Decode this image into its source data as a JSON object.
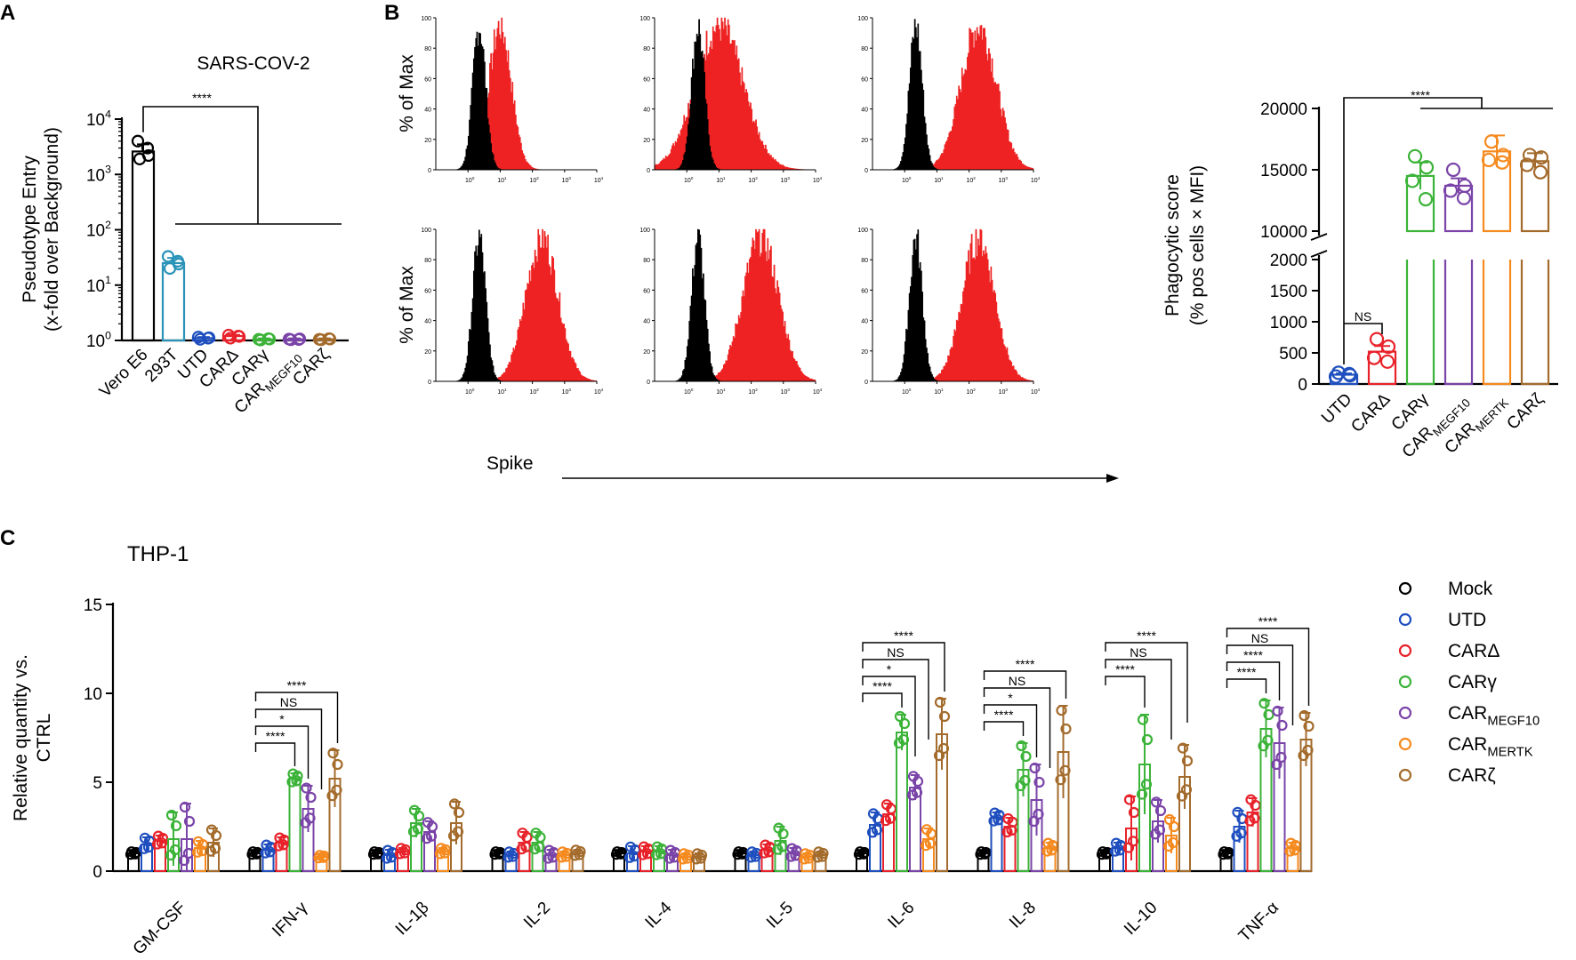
{
  "colors": {
    "black": "#000000",
    "Mock": "#000000",
    "UTD": "#1f4fbf",
    "CARΔ": "#e8222a",
    "CARγ": "#3cb339",
    "CARMEGF10": "#7a44a8",
    "CARMERTK": "#f58a1f",
    "CARζ": "#a36b2c",
    "VeroE6": "#000000",
    "293T": "#2a93b8",
    "histRed": "#ee2222"
  },
  "chart_data": [
    {
      "id": "A",
      "panel_label": "A",
      "type": "bar",
      "title": "SARS-COV-2",
      "ylabel_lines": [
        "Pseudotype Entry",
        "(x-fold over Background)"
      ],
      "yscale": "log",
      "ylim": [
        1,
        10000
      ],
      "ytick_labels": [
        {
          "base": "10",
          "exp": "0"
        },
        {
          "base": "10",
          "exp": "1"
        },
        {
          "base": "10",
          "exp": "2"
        },
        {
          "base": "10",
          "exp": "3"
        },
        {
          "base": "10",
          "exp": "4"
        }
      ],
      "categories": [
        {
          "main": "Vero E6",
          "sub": "",
          "color_key": "VeroE6"
        },
        {
          "main": "293T",
          "sub": "",
          "color_key": "293T"
        },
        {
          "main": "UTD",
          "sub": "",
          "color_key": "UTD"
        },
        {
          "main": "CARΔ",
          "sub": "",
          "color_key": "CARΔ"
        },
        {
          "main": "CARγ",
          "sub": "",
          "color_key": "CARγ"
        },
        {
          "main": "CAR",
          "sub": "MEGF10",
          "color_key": "CARMEGF10"
        },
        {
          "main": "CARζ",
          "sub": "",
          "color_key": "CARζ"
        }
      ],
      "values": [
        2600,
        25,
        1.1,
        1.2,
        1.05,
        1.05,
        1.05
      ],
      "errors": [
        900,
        6,
        0.05,
        0.06,
        0.04,
        0.04,
        0.04
      ],
      "points": [
        [
          4000,
          3000,
          1900,
          2200
        ],
        [
          33,
          27,
          20,
          24
        ],
        [
          1.15,
          1.1,
          1.05,
          1.12
        ],
        [
          1.25,
          1.2,
          1.1,
          1.18
        ],
        [
          1.05,
          1.08,
          1.02,
          1.06
        ],
        [
          1.06,
          1.04,
          1.03,
          1.07
        ],
        [
          1.05,
          1.08,
          1.03,
          1.06
        ]
      ],
      "significance": [
        {
          "label": "****",
          "from": "Vero E6",
          "to": "UTD..CARζ"
        }
      ]
    },
    {
      "id": "B_hist",
      "panel_label": "B",
      "type": "histogram",
      "ylabel": "% of Max",
      "xlabel": "Spike",
      "xscale": "log",
      "xlim": [
        0.1,
        10000
      ],
      "ylim": [
        0,
        100
      ],
      "ytick_labels": [
        "0",
        "20",
        "40",
        "60",
        "80",
        "100"
      ],
      "xtick_labels": [
        {
          "base": "10",
          "exp": "0"
        },
        {
          "base": "10",
          "exp": "1"
        },
        {
          "base": "10",
          "exp": "2"
        },
        {
          "base": "10",
          "exp": "3"
        },
        {
          "base": "10",
          "exp": "4"
        }
      ],
      "series_names": [
        "control",
        "stained"
      ],
      "control_peak_log10": 0.35,
      "stained_peak_log10": [
        1.0,
        1.0,
        2.3,
        2.3,
        2.3,
        2.3
      ],
      "stained_spread": [
        0.35,
        0.75,
        0.55,
        0.5,
        0.55,
        0.5
      ]
    },
    {
      "id": "B_bar",
      "type": "bar",
      "ylabel_lines": [
        "Phagocytic score",
        "(% pos cells × MFI)"
      ],
      "yaxis_break": true,
      "ylim_lower": [
        0,
        2000
      ],
      "ylim_upper": [
        10000,
        20000
      ],
      "ytick_labels_upper": [
        "10000",
        "15000",
        "20000"
      ],
      "ytick_labels_lower": [
        "0",
        "500",
        "1000",
        "1500",
        "2000"
      ],
      "categories": [
        {
          "main": "UTD",
          "sub": "",
          "color_key": "UTD"
        },
        {
          "main": "CARΔ",
          "sub": "",
          "color_key": "CARΔ"
        },
        {
          "main": "CARγ",
          "sub": "",
          "color_key": "CARγ"
        },
        {
          "main": "CAR",
          "sub": "MEGF10",
          "color_key": "CARMEGF10"
        },
        {
          "main": "CAR",
          "sub": "MERTK",
          "color_key": "CARMERTK"
        },
        {
          "main": "CARζ",
          "sub": "",
          "color_key": "CARζ"
        }
      ],
      "values": [
        150,
        520,
        14500,
        13700,
        16500,
        15700
      ],
      "errors": [
        20,
        90,
        1100,
        600,
        1300,
        650
      ],
      "points": [
        [
          180,
          140,
          120,
          160
        ],
        [
          720,
          600,
          420,
          360
        ],
        [
          16100,
          15200,
          14100,
          12600
        ],
        [
          15000,
          13700,
          13300,
          12700
        ],
        [
          17300,
          16200,
          15800,
          15600
        ],
        [
          16200,
          16000,
          15400,
          14800
        ]
      ],
      "significance": [
        {
          "label": "****",
          "from": "UTD",
          "to": "CARγ..CARζ"
        },
        {
          "label": "NS",
          "from": "UTD",
          "to": "CARΔ"
        }
      ]
    },
    {
      "id": "C",
      "panel_label": "C",
      "type": "bar",
      "title": "THP-1",
      "ylabel_lines": [
        "Relative quantity vs.",
        "CTRL"
      ],
      "ylim": [
        0,
        15
      ],
      "ytick_labels": [
        "0",
        "5",
        "10",
        "15"
      ],
      "categories": [
        "GM-CSF",
        "IFN-γ",
        "IL-1β",
        "IL-2",
        "IL-4",
        "IL-5",
        "IL-6",
        "IL-8",
        "IL-10",
        "TNF-α"
      ],
      "legend": [
        {
          "main": "Mock",
          "sub": "",
          "color_key": "Mock"
        },
        {
          "main": "UTD",
          "sub": "",
          "color_key": "UTD"
        },
        {
          "main": "CARΔ",
          "sub": "",
          "color_key": "CARΔ"
        },
        {
          "main": "CARγ",
          "sub": "",
          "color_key": "CARγ"
        },
        {
          "main": "CAR",
          "sub": "MEGF10",
          "color_key": "CARMEGF10"
        },
        {
          "main": "CAR",
          "sub": "MERTK",
          "color_key": "CARMERTK"
        },
        {
          "main": "CARζ",
          "sub": "",
          "color_key": "CARζ"
        }
      ],
      "series": [
        {
          "name": "Mock",
          "values": [
            1.0,
            1.0,
            1.0,
            1.0,
            1.0,
            1.0,
            1.0,
            1.0,
            1.0,
            1.0
          ],
          "errors": [
            0.1,
            0.1,
            0.1,
            0.1,
            0.1,
            0.1,
            0.1,
            0.1,
            0.1,
            0.1
          ]
        },
        {
          "name": "UTD",
          "values": [
            1.5,
            1.2,
            0.9,
            0.9,
            1.0,
            0.9,
            2.6,
            3.0,
            1.3,
            2.5
          ],
          "errors": [
            0.4,
            0.3,
            0.3,
            0.2,
            0.4,
            0.2,
            0.7,
            0.3,
            0.3,
            0.9
          ]
        },
        {
          "name": "CARΔ",
          "values": [
            1.7,
            1.6,
            1.1,
            1.6,
            1.1,
            1.2,
            3.2,
            2.5,
            2.4,
            3.3
          ],
          "errors": [
            0.3,
            0.3,
            0.2,
            0.6,
            0.3,
            0.3,
            0.6,
            0.5,
            1.8,
            0.8
          ]
        },
        {
          "name": "CARγ",
          "values": [
            1.8,
            5.2,
            2.7,
            1.6,
            1.1,
            1.7,
            7.8,
            5.7,
            6.0,
            8.0
          ],
          "errors": [
            1.5,
            0.3,
            0.8,
            0.6,
            0.3,
            0.8,
            1.0,
            1.5,
            2.8,
            1.6
          ]
        },
        {
          "name": "CARMEGF10",
          "values": [
            1.8,
            3.5,
            2.2,
            0.9,
            0.9,
            1.0,
            4.7,
            4.0,
            2.8,
            7.2
          ],
          "errors": [
            2.0,
            1.3,
            0.6,
            0.3,
            0.3,
            0.3,
            0.7,
            2.0,
            1.2,
            2.0
          ]
        },
        {
          "name": "CARMERTK",
          "values": [
            1.3,
            0.8,
            1.1,
            0.9,
            0.8,
            0.8,
            1.8,
            1.3,
            2.0,
            1.3
          ],
          "errors": [
            0.4,
            0.1,
            0.2,
            0.2,
            0.2,
            0.2,
            0.6,
            0.3,
            1.0,
            0.3
          ]
        },
        {
          "name": "CARζ",
          "values": [
            1.6,
            5.2,
            2.7,
            1.0,
            0.8,
            0.9,
            7.7,
            6.7,
            5.3,
            7.4
          ],
          "errors": [
            0.8,
            1.6,
            1.2,
            0.2,
            0.2,
            0.2,
            2.0,
            2.6,
            1.8,
            1.5
          ]
        }
      ],
      "significance": [
        {
          "category": "IFN-γ",
          "labels": [
            "****",
            "*",
            "NS",
            "****"
          ]
        },
        {
          "category": "IL-6",
          "labels": [
            "****",
            "*",
            "NS",
            "****"
          ]
        },
        {
          "category": "IL-8",
          "labels": [
            "****",
            "*",
            "NS",
            "****"
          ]
        },
        {
          "category": "IL-10",
          "labels": [
            "****",
            "NS",
            "****"
          ]
        },
        {
          "category": "TNF-α",
          "labels": [
            "****",
            "****",
            "NS",
            "****"
          ]
        }
      ]
    }
  ]
}
